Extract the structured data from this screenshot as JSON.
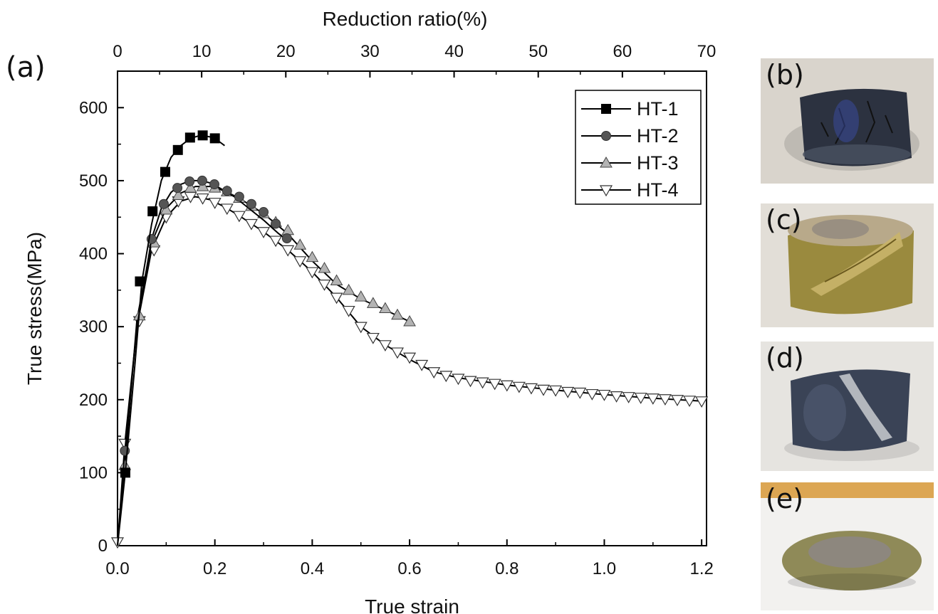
{
  "panel_label": "(a)",
  "chart_data": {
    "type": "line",
    "title": "",
    "xlabel": "True strain",
    "ylabel": "True stress(MPa)",
    "x2label": "Reduction ratio(%)",
    "xlim": [
      0,
      1.21
    ],
    "ylim": [
      0,
      650
    ],
    "x2lim": [
      0,
      70
    ],
    "xticks": [
      0.0,
      0.2,
      0.4,
      0.6,
      0.8,
      1.0,
      1.2
    ],
    "xtick_labels": [
      "0.0",
      "0.2",
      "0.4",
      "0.6",
      "0.8",
      "1.0",
      "1.2"
    ],
    "yticks": [
      0,
      100,
      200,
      300,
      400,
      500,
      600
    ],
    "ytick_labels": [
      "0",
      "100",
      "200",
      "300",
      "400",
      "500",
      "600"
    ],
    "x2ticks": [
      0,
      10,
      20,
      30,
      40,
      50,
      60,
      70
    ],
    "x2tick_labels": [
      "0",
      "10",
      "20",
      "30",
      "40",
      "50",
      "60",
      "70"
    ],
    "legend_position": "top-right",
    "series": [
      {
        "name": "HT-1",
        "marker": "square",
        "fill": "#000000",
        "x": [
          0.0,
          0.016,
          0.036,
          0.05,
          0.07,
          0.09,
          0.11,
          0.13,
          0.15,
          0.17,
          0.19,
          0.21,
          0.22
        ],
        "y": [
          0,
          100,
          250,
          362,
          440,
          500,
          532,
          548,
          558,
          562,
          560,
          553,
          548
        ],
        "marker_x": [
          0.016,
          0.046,
          0.072,
          0.098,
          0.124,
          0.149,
          0.175,
          0.2
        ],
        "marker_y": [
          100,
          362,
          458,
          512,
          542,
          559,
          562,
          558
        ]
      },
      {
        "name": "HT-2",
        "marker": "circle",
        "fill": "#555555",
        "x": [
          0.0,
          0.015,
          0.04,
          0.07,
          0.09,
          0.11,
          0.13,
          0.15,
          0.17,
          0.19,
          0.21,
          0.24,
          0.27,
          0.3,
          0.33,
          0.35
        ],
        "y": [
          0,
          130,
          300,
          420,
          462,
          484,
          495,
          500,
          500,
          497,
          490,
          478,
          462,
          446,
          428,
          418
        ],
        "marker_x": [
          0.015,
          0.07,
          0.095,
          0.123,
          0.148,
          0.174,
          0.199,
          0.225,
          0.25,
          0.275,
          0.3,
          0.325,
          0.348
        ],
        "marker_y": [
          130,
          420,
          468,
          490,
          499,
          500,
          495,
          486,
          478,
          468,
          457,
          441,
          421
        ]
      },
      {
        "name": "HT-3",
        "marker": "triangle-up",
        "fill": "#b3b3b3",
        "x": [
          0.0,
          0.015,
          0.04,
          0.07,
          0.1,
          0.13,
          0.16,
          0.19,
          0.22,
          0.25,
          0.3,
          0.35,
          0.4,
          0.45,
          0.5,
          0.55,
          0.6
        ],
        "y": [
          0,
          110,
          310,
          415,
          462,
          483,
          492,
          492,
          486,
          476,
          455,
          427,
          390,
          358,
          338,
          323,
          307
        ],
        "marker_x": [
          0.015,
          0.045,
          0.075,
          0.1,
          0.125,
          0.15,
          0.175,
          0.2,
          0.225,
          0.25,
          0.275,
          0.3,
          0.325,
          0.35,
          0.375,
          0.4,
          0.425,
          0.45,
          0.475,
          0.5,
          0.525,
          0.55,
          0.575,
          0.6
        ],
        "marker_y": [
          110,
          315,
          415,
          460,
          480,
          490,
          492,
          490,
          485,
          476,
          465,
          455,
          443,
          432,
          412,
          395,
          380,
          363,
          350,
          341,
          332,
          325,
          316,
          307
        ]
      },
      {
        "name": "HT-4",
        "marker": "triangle-down",
        "fill": "#ffffff",
        "x": [
          0.0,
          0.015,
          0.04,
          0.07,
          0.1,
          0.13,
          0.16,
          0.19,
          0.22,
          0.25,
          0.3,
          0.35,
          0.4,
          0.45,
          0.5,
          0.55,
          0.6,
          0.65,
          0.7,
          0.8,
          0.9,
          1.0,
          1.1,
          1.2
        ],
        "y": [
          0,
          140,
          300,
          405,
          450,
          472,
          478,
          474,
          464,
          452,
          430,
          405,
          375,
          340,
          300,
          275,
          255,
          238,
          230,
          220,
          213,
          207,
          202,
          198
        ],
        "marker_x": [
          0.0,
          0.015,
          0.045,
          0.075,
          0.1,
          0.125,
          0.15,
          0.175,
          0.2,
          0.225,
          0.25,
          0.275,
          0.3,
          0.325,
          0.35,
          0.375,
          0.4,
          0.425,
          0.45,
          0.475,
          0.5,
          0.525,
          0.55,
          0.575,
          0.6,
          0.625,
          0.65,
          0.675,
          0.7,
          0.725,
          0.75,
          0.775,
          0.8,
          0.825,
          0.85,
          0.875,
          0.9,
          0.925,
          0.95,
          0.975,
          1.0,
          1.025,
          1.05,
          1.075,
          1.1,
          1.125,
          1.15,
          1.175,
          1.2
        ],
        "marker_y": [
          5,
          140,
          308,
          405,
          450,
          472,
          478,
          476,
          470,
          462,
          452,
          441,
          430,
          418,
          405,
          390,
          375,
          358,
          340,
          322,
          300,
          285,
          275,
          265,
          258,
          248,
          238,
          233,
          229,
          226,
          224,
          222,
          220,
          218,
          216,
          214,
          213,
          211,
          210,
          208,
          207,
          205,
          204,
          203,
          202,
          201,
          200,
          199,
          198
        ]
      }
    ]
  },
  "photos": [
    {
      "label": "(b)",
      "body_color": "#2c3240",
      "bg_color": "#d9d4cc"
    },
    {
      "label": "(c)",
      "body_color": "#9a8a3e",
      "bg_color": "#e2ded7"
    },
    {
      "label": "(d)",
      "body_color": "#3a4356",
      "bg_color": "#e6e4e0"
    },
    {
      "label": "(e)",
      "body_color": "#8f8a58",
      "bg_color": "#f2f1ef",
      "top_strip_color": "#dca653"
    }
  ]
}
